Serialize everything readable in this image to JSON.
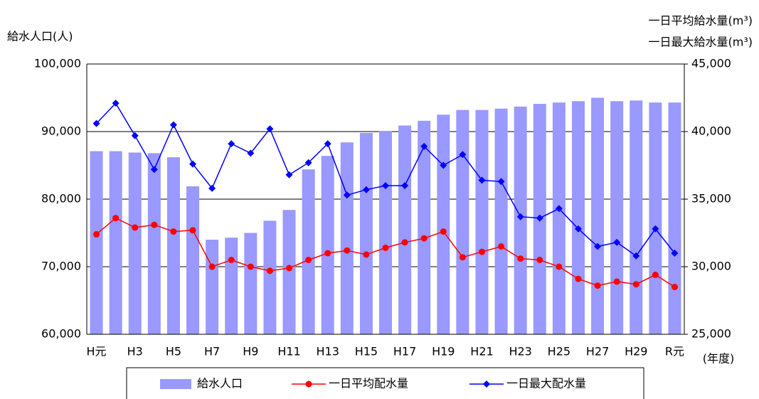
{
  "chart_data": {
    "type": "bar",
    "y_title": "給水人口(人)",
    "y2_title": [
      "一日平均給水量(m³)",
      "一日最大給水量(m³)"
    ],
    "x_title": "(年度)",
    "categories": [
      "H元",
      null,
      "H3",
      null,
      "H5",
      null,
      "H7",
      null,
      "H9",
      null,
      "H11",
      null,
      "H13",
      null,
      "H15",
      null,
      "H17",
      null,
      "H19",
      null,
      "H21",
      null,
      "H23",
      null,
      "H25",
      null,
      "H27",
      null,
      "H29",
      null,
      "R元"
    ],
    "series": [
      {
        "name": "給水人口",
        "type": "bar",
        "color": "#9999ff",
        "values": [
          87100,
          87100,
          86900,
          86800,
          86200,
          81900,
          74000,
          74300,
          75000,
          76800,
          78400,
          84400,
          86400,
          88400,
          89800,
          90100,
          90900,
          91600,
          92500,
          93200,
          93200,
          93400,
          93700,
          94100,
          94300,
          94500,
          95000,
          94500,
          94600,
          94300,
          94300
        ]
      },
      {
        "name": "一日平均配水量",
        "type": "line",
        "marker": "circle",
        "axis": "y2",
        "color": "#ff0000",
        "values": [
          32400,
          33600,
          32900,
          33100,
          32600,
          32700,
          30000,
          30500,
          30000,
          29700,
          29900,
          30500,
          31000,
          31200,
          30900,
          31400,
          31800,
          32100,
          32600,
          30700,
          31100,
          31500,
          30600,
          30500,
          30000,
          29100,
          28600,
          28900,
          28700,
          29400,
          28500
        ]
      },
      {
        "name": "一日最大配水量",
        "type": "line",
        "marker": "diamond",
        "axis": "y2",
        "color": "#0000ff",
        "values": [
          40600,
          42100,
          39700,
          37200,
          40500,
          37600,
          35800,
          39100,
          38400,
          40200,
          36800,
          37700,
          39100,
          35300,
          35700,
          36000,
          36000,
          38900,
          37500,
          38300,
          36400,
          36300,
          33700,
          33600,
          34300,
          32800,
          31500,
          31800,
          30800,
          32800,
          31000
        ]
      }
    ],
    "ylim": [
      60000,
      100000
    ],
    "yticks": [
      {
        "value": 60000,
        "label": "60,000"
      },
      {
        "value": 70000,
        "label": "70,000"
      },
      {
        "value": 80000,
        "label": "80,000"
      },
      {
        "value": 90000,
        "label": "90,000"
      },
      {
        "value": 100000,
        "label": "100,000"
      }
    ],
    "y2lim": [
      25000,
      45000
    ],
    "y2ticks": [
      {
        "value": 25000,
        "label": "25,000"
      },
      {
        "value": 30000,
        "label": "30,000"
      },
      {
        "value": 35000,
        "label": "35,000"
      },
      {
        "value": 40000,
        "label": "40,000"
      },
      {
        "value": 45000,
        "label": "45,000"
      }
    ],
    "grid": true,
    "legend": "bottom"
  }
}
